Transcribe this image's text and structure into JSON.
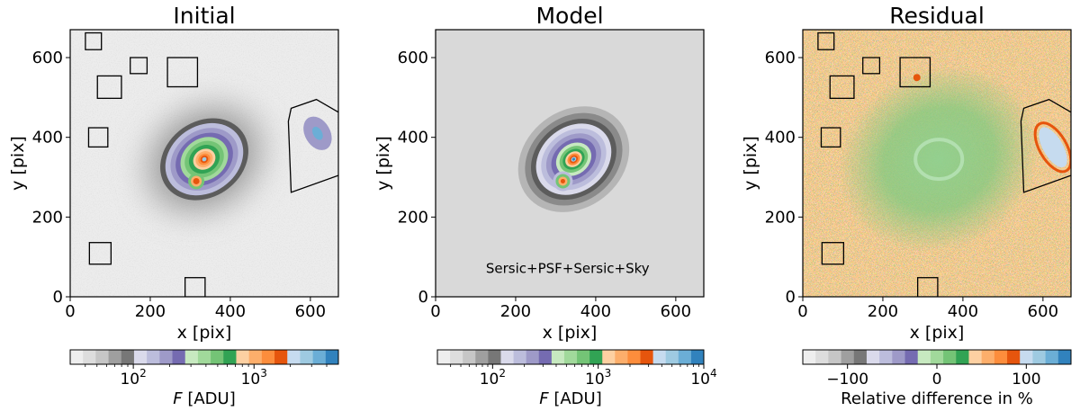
{
  "chart_data": [
    {
      "type": "heatmap",
      "title": "Initial",
      "xlabel": "x [pix]",
      "ylabel": "y [pix]",
      "xlim": [
        0,
        670
      ],
      "ylim": [
        0,
        670
      ],
      "xticks": [
        "0",
        "200",
        "400",
        "600"
      ],
      "yticks": [
        "0",
        "200",
        "400",
        "600"
      ],
      "colorbar_label": "F [ADU]",
      "colorbar_ticks": [
        {
          "label": "10",
          "exp": "2",
          "value": 100
        },
        {
          "label": "10",
          "exp": "3",
          "value": 1000
        }
      ],
      "colorbar_range": [
        30,
        5000
      ],
      "galaxy_center": [
        335,
        345
      ],
      "companion": [
        315,
        290
      ],
      "mask_boxes": [
        {
          "x": 38,
          "y": 620,
          "w": 40,
          "h": 42
        },
        {
          "x": 68,
          "y": 498,
          "w": 60,
          "h": 56
        },
        {
          "x": 150,
          "y": 560,
          "w": 42,
          "h": 40
        },
        {
          "x": 243,
          "y": 527,
          "w": 75,
          "h": 73
        },
        {
          "x": 46,
          "y": 376,
          "w": 48,
          "h": 48
        },
        {
          "x": 48,
          "y": 82,
          "w": 54,
          "h": 54
        },
        {
          "x": 287,
          "y": 0,
          "w": 50,
          "h": 48
        }
      ],
      "mask_polygon": [
        [
          552,
          473
        ],
        [
          615,
          495
        ],
        [
          672,
          462
        ],
        [
          672,
          305
        ],
        [
          552,
          262
        ],
        [
          545,
          440
        ]
      ]
    },
    {
      "type": "heatmap",
      "title": "Model",
      "xlabel": "x [pix]",
      "ylabel": "y [pix]",
      "xlim": [
        0,
        670
      ],
      "ylim": [
        0,
        670
      ],
      "xticks": [
        "0",
        "200",
        "400",
        "600"
      ],
      "yticks": [
        "0",
        "200",
        "400",
        "600"
      ],
      "annotation": "Sersic+PSF+Sersic+Sky",
      "colorbar_label": "F [ADU]",
      "colorbar_ticks": [
        {
          "label": "10",
          "exp": "2",
          "value": 100
        },
        {
          "label": "10",
          "exp": "3",
          "value": 1000
        },
        {
          "label": "10",
          "exp": "4",
          "value": 10000
        }
      ],
      "colorbar_range": [
        30,
        10000
      ],
      "galaxy_center": [
        345,
        345
      ],
      "companion": [
        318,
        290
      ]
    },
    {
      "type": "heatmap",
      "title": "Residual",
      "xlabel": "x [pix]",
      "ylabel": "y [pix]",
      "xlim": [
        0,
        670
      ],
      "ylim": [
        0,
        670
      ],
      "xticks": [
        "0",
        "200",
        "400",
        "600"
      ],
      "yticks": [
        "0",
        "200",
        "400",
        "600"
      ],
      "colorbar_label": "Relative difference in %",
      "colorbar_ticks": [
        {
          "label": "−100",
          "value": -100
        },
        {
          "label": "0",
          "value": 0
        },
        {
          "label": "100",
          "value": 100
        }
      ],
      "colorbar_range": [
        -150,
        150
      ]
    }
  ],
  "colors": {
    "background_initial": "#ececec",
    "background_model": "#d9d9d9",
    "residual_green": "#7fc97f",
    "residual_orange": "#f08a3c",
    "residual_blue": "#a9c6de",
    "residual_red": "#e6550d"
  },
  "colormap": [
    "#eeeeee",
    "#dddddd",
    "#c6c6c6",
    "#9f9f9f",
    "#777777",
    "#dadaeb",
    "#bcbddc",
    "#9e9ac8",
    "#756bb1",
    "#c7e9c0",
    "#a1d99b",
    "#74c476",
    "#31a354",
    "#fdd0a2",
    "#fdae6b",
    "#fd8d3c",
    "#e6550d",
    "#c6dbef",
    "#9ecae1",
    "#6baed6",
    "#3182bd"
  ]
}
